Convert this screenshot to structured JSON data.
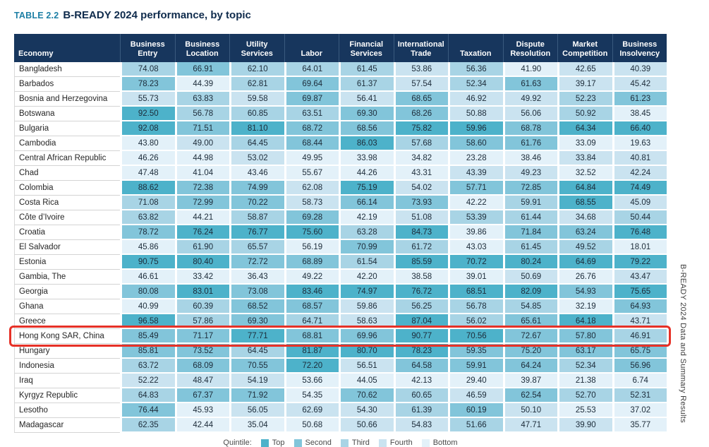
{
  "title": {
    "label": "TABLE 2.2",
    "text": "B-READY 2024 performance, by topic"
  },
  "table": {
    "columns": [
      "Economy",
      "Business Entry",
      "Business Location",
      "Utility Services",
      "Labor",
      "Financial Services",
      "International Trade",
      "Taxation",
      "Dispute Resolution",
      "Market Competition",
      "Business Insolvency"
    ],
    "rows": [
      {
        "economy": "Bangladesh",
        "values": [
          "74.08",
          "66.91",
          "62.10",
          "64.01",
          "61.45",
          "53.86",
          "56.36",
          "41.90",
          "42.65",
          "40.39"
        ],
        "quintiles": [
          3,
          2,
          3,
          3,
          3,
          4,
          3,
          5,
          4,
          4
        ],
        "highlighted": false
      },
      {
        "economy": "Barbados",
        "values": [
          "78.23",
          "44.39",
          "62.81",
          "69.64",
          "61.37",
          "57.54",
          "52.34",
          "61.63",
          "39.17",
          "45.42"
        ],
        "quintiles": [
          2,
          5,
          3,
          2,
          3,
          4,
          3,
          2,
          4,
          4
        ],
        "highlighted": false
      },
      {
        "economy": "Bosnia and Herzegovina",
        "values": [
          "55.73",
          "63.83",
          "59.58",
          "69.87",
          "56.41",
          "68.65",
          "46.92",
          "49.92",
          "52.23",
          "61.23"
        ],
        "quintiles": [
          4,
          3,
          4,
          2,
          4,
          2,
          4,
          4,
          3,
          2
        ],
        "highlighted": false
      },
      {
        "economy": "Botswana",
        "values": [
          "92.50",
          "56.78",
          "60.85",
          "63.51",
          "69.30",
          "68.26",
          "50.88",
          "56.06",
          "50.92",
          "38.45"
        ],
        "quintiles": [
          1,
          3,
          3,
          3,
          2,
          2,
          4,
          4,
          3,
          5
        ],
        "highlighted": false
      },
      {
        "economy": "Bulgaria",
        "values": [
          "92.08",
          "71.51",
          "81.10",
          "68.72",
          "68.56",
          "75.82",
          "59.96",
          "68.78",
          "64.34",
          "66.40"
        ],
        "quintiles": [
          1,
          2,
          1,
          2,
          2,
          1,
          1,
          2,
          1,
          1
        ],
        "highlighted": false
      },
      {
        "economy": "Cambodia",
        "values": [
          "43.80",
          "49.00",
          "64.45",
          "68.44",
          "86.03",
          "57.68",
          "58.60",
          "61.76",
          "33.09",
          "19.63"
        ],
        "quintiles": [
          5,
          4,
          3,
          2,
          1,
          3,
          2,
          2,
          5,
          5
        ],
        "highlighted": false
      },
      {
        "economy": "Central African Republic",
        "values": [
          "46.26",
          "44.98",
          "53.02",
          "49.95",
          "33.98",
          "34.82",
          "23.28",
          "38.46",
          "33.84",
          "40.81"
        ],
        "quintiles": [
          5,
          5,
          4,
          5,
          5,
          5,
          5,
          5,
          4,
          4
        ],
        "highlighted": false
      },
      {
        "economy": "Chad",
        "values": [
          "47.48",
          "41.04",
          "43.46",
          "55.67",
          "44.26",
          "43.31",
          "43.39",
          "49.23",
          "32.52",
          "42.24"
        ],
        "quintiles": [
          5,
          5,
          5,
          5,
          5,
          5,
          4,
          4,
          5,
          4
        ],
        "highlighted": false
      },
      {
        "economy": "Colombia",
        "values": [
          "88.62",
          "72.38",
          "74.99",
          "62.08",
          "75.19",
          "54.02",
          "57.71",
          "72.85",
          "64.84",
          "74.49"
        ],
        "quintiles": [
          1,
          2,
          2,
          4,
          1,
          4,
          2,
          2,
          1,
          1
        ],
        "highlighted": false
      },
      {
        "economy": "Costa Rica",
        "values": [
          "71.08",
          "72.99",
          "70.22",
          "58.73",
          "66.14",
          "73.93",
          "42.22",
          "59.91",
          "68.55",
          "45.09"
        ],
        "quintiles": [
          3,
          2,
          2,
          4,
          2,
          2,
          5,
          3,
          1,
          4
        ],
        "highlighted": false
      },
      {
        "economy": "Côte d’Ivoire",
        "values": [
          "63.82",
          "44.21",
          "58.87",
          "69.28",
          "42.19",
          "51.08",
          "53.39",
          "61.44",
          "34.68",
          "50.44"
        ],
        "quintiles": [
          3,
          5,
          3,
          2,
          5,
          4,
          3,
          3,
          4,
          3
        ],
        "highlighted": false
      },
      {
        "economy": "Croatia",
        "values": [
          "78.72",
          "76.24",
          "76.77",
          "75.60",
          "63.28",
          "84.73",
          "39.86",
          "71.84",
          "63.24",
          "76.48"
        ],
        "quintiles": [
          2,
          1,
          1,
          1,
          3,
          1,
          5,
          2,
          2,
          1
        ],
        "highlighted": false
      },
      {
        "economy": "El Salvador",
        "values": [
          "45.86",
          "61.90",
          "65.57",
          "56.19",
          "70.99",
          "61.72",
          "43.03",
          "61.45",
          "49.52",
          "18.01"
        ],
        "quintiles": [
          5,
          3,
          3,
          5,
          2,
          3,
          5,
          3,
          3,
          5
        ],
        "highlighted": false
      },
      {
        "economy": "Estonia",
        "values": [
          "90.75",
          "80.40",
          "72.72",
          "68.89",
          "61.54",
          "85.59",
          "70.72",
          "80.24",
          "64.69",
          "79.22"
        ],
        "quintiles": [
          1,
          1,
          2,
          2,
          3,
          1,
          1,
          1,
          1,
          1
        ],
        "highlighted": false
      },
      {
        "economy": "Gambia, The",
        "values": [
          "46.61",
          "33.42",
          "36.43",
          "49.22",
          "42.20",
          "38.58",
          "39.01",
          "50.69",
          "26.76",
          "43.47"
        ],
        "quintiles": [
          5,
          5,
          5,
          5,
          5,
          5,
          5,
          4,
          5,
          4
        ],
        "highlighted": false
      },
      {
        "economy": "Georgia",
        "values": [
          "80.08",
          "83.01",
          "73.08",
          "83.46",
          "74.97",
          "76.72",
          "68.51",
          "82.09",
          "54.93",
          "75.65"
        ],
        "quintiles": [
          2,
          1,
          2,
          1,
          1,
          1,
          1,
          1,
          2,
          1
        ],
        "highlighted": false
      },
      {
        "economy": "Ghana",
        "values": [
          "40.99",
          "60.39",
          "68.52",
          "68.57",
          "59.86",
          "56.25",
          "56.78",
          "54.85",
          "32.19",
          "64.93"
        ],
        "quintiles": [
          5,
          3,
          2,
          2,
          4,
          3,
          3,
          3,
          5,
          2
        ],
        "highlighted": false
      },
      {
        "economy": "Greece",
        "values": [
          "96.58",
          "57.86",
          "69.30",
          "64.71",
          "58.63",
          "87.04",
          "56.02",
          "65.61",
          "64.18",
          "43.71"
        ],
        "quintiles": [
          1,
          3,
          2,
          3,
          4,
          1,
          3,
          2,
          1,
          4
        ],
        "highlighted": false
      },
      {
        "economy": "Hong Kong SAR, China",
        "values": [
          "85.49",
          "71.17",
          "77.71",
          "68.81",
          "69.96",
          "90.77",
          "70.56",
          "72.67",
          "57.80",
          "46.91"
        ],
        "quintiles": [
          2,
          2,
          1,
          2,
          2,
          1,
          1,
          2,
          2,
          3
        ],
        "highlighted": true
      },
      {
        "economy": "Hungary",
        "values": [
          "85.81",
          "73.52",
          "64.45",
          "81.87",
          "80.70",
          "78.23",
          "59.35",
          "75.20",
          "63.17",
          "65.75"
        ],
        "quintiles": [
          2,
          2,
          3,
          1,
          1,
          1,
          2,
          2,
          2,
          2
        ],
        "highlighted": false
      },
      {
        "economy": "Indonesia",
        "values": [
          "63.72",
          "68.09",
          "70.55",
          "72.20",
          "56.51",
          "64.58",
          "59.91",
          "64.24",
          "52.34",
          "56.96"
        ],
        "quintiles": [
          3,
          2,
          2,
          1,
          4,
          2,
          2,
          2,
          3,
          2
        ],
        "highlighted": false
      },
      {
        "economy": "Iraq",
        "values": [
          "52.22",
          "48.47",
          "54.19",
          "53.66",
          "44.05",
          "42.13",
          "29.40",
          "39.87",
          "21.38",
          "6.74"
        ],
        "quintiles": [
          4,
          4,
          4,
          5,
          5,
          5,
          5,
          5,
          5,
          5
        ],
        "highlighted": false
      },
      {
        "economy": "Kyrgyz Republic",
        "values": [
          "64.83",
          "67.37",
          "71.92",
          "54.35",
          "70.62",
          "60.65",
          "46.59",
          "62.54",
          "52.70",
          "52.31"
        ],
        "quintiles": [
          3,
          2,
          2,
          5,
          2,
          3,
          4,
          2,
          3,
          3
        ],
        "highlighted": false
      },
      {
        "economy": "Lesotho",
        "values": [
          "76.44",
          "45.93",
          "56.05",
          "62.69",
          "54.30",
          "61.39",
          "60.19",
          "50.10",
          "25.53",
          "37.02"
        ],
        "quintiles": [
          2,
          5,
          4,
          4,
          4,
          3,
          2,
          4,
          5,
          5
        ],
        "highlighted": false
      },
      {
        "economy": "Madagascar",
        "values": [
          "62.35",
          "42.44",
          "35.04",
          "50.68",
          "50.66",
          "54.83",
          "51.66",
          "47.71",
          "39.90",
          "35.77"
        ],
        "quintiles": [
          3,
          5,
          5,
          5,
          4,
          4,
          3,
          4,
          4,
          5
        ],
        "highlighted": false
      }
    ]
  },
  "legend": {
    "label": "Quintile:",
    "items": [
      {
        "name": "Top",
        "quintile": 1
      },
      {
        "name": "Second",
        "quintile": 2
      },
      {
        "name": "Third",
        "quintile": 3
      },
      {
        "name": "Fourth",
        "quintile": 4
      },
      {
        "name": "Bottom",
        "quintile": 5
      }
    ]
  },
  "colors": {
    "q1": "#4db2ca",
    "q2": "#82c5da",
    "q3": "#a8d4e5",
    "q4": "#cae3f0",
    "q5": "#e3f1f9",
    "header_bg": "#17365d",
    "highlight_border": "#e63127",
    "title_label": "#1d7fa5",
    "title_text": "#0f2b4c"
  },
  "side_text": "B-READY 2024 Data and Summary Results"
}
